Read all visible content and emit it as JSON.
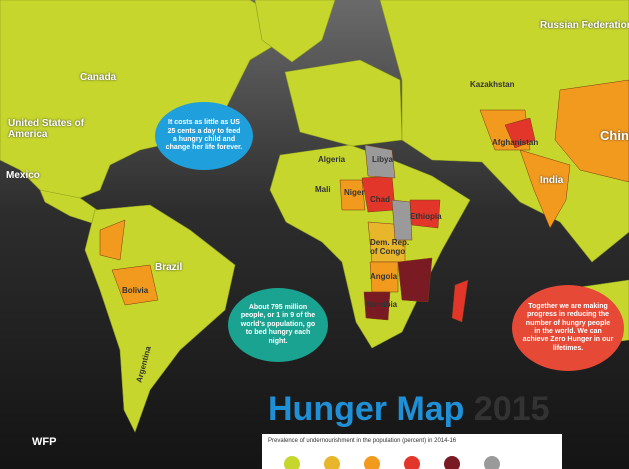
{
  "map_labels": [
    "Russian Federation",
    "Canada",
    "United States of America",
    "Mexico",
    "Brazil",
    "Bolivia",
    "Argentina",
    "Algeria",
    "Libya",
    "Mali",
    "Niger",
    "Chad",
    "Ethiopia",
    "Dem. Rep. of Congo",
    "Angola",
    "Namibia",
    "Kazakhstan",
    "Afghanistan",
    "India",
    "China"
  ],
  "callouts": [
    "It costs as little as US 25 cents a day to feed a hungry child and change her life forever.",
    "About 795 million people, or 1 in 9 of the world's population, go to bed hungry each night.",
    "Together we are making progress in reducing the number of hungry people in the world. We can achieve Zero Hunger in our lifetimes."
  ],
  "title": "Hunger Map",
  "year": "2015",
  "legend": {
    "title": "Prevalence of undernourishment in the population (percent) in 2014-16"
  },
  "logo": "WFP"
}
